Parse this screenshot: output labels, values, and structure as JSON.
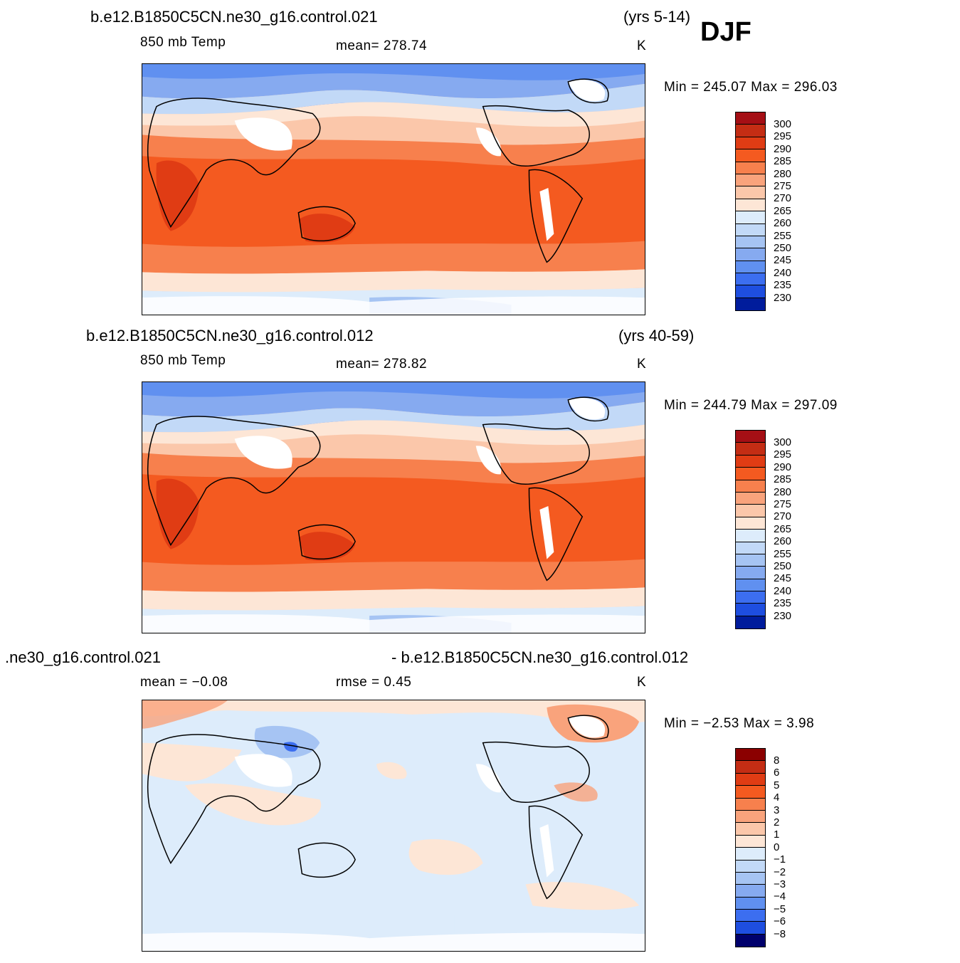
{
  "season": "DJF",
  "colors": {
    "abs_scale": [
      "#a50f15",
      "#c42d14",
      "#e03c14",
      "#f45a20",
      "#f7804d",
      "#f9a37c",
      "#fbc7aa",
      "#fde6d6",
      "#ddecfb",
      "#c2d9f7",
      "#a6c4f3",
      "#86aaf0",
      "#6090f0",
      "#3c6ef0",
      "#1e4ee0",
      "#0a2fc0",
      "#001c9c",
      "#00006c"
    ],
    "diff_scale": [
      "#8b0000",
      "#c42d14",
      "#e03c14",
      "#f45a20",
      "#f7804d",
      "#f9a37c",
      "#fbc7aa",
      "#fde6d6",
      "#ddecfb",
      "#c2d9f7",
      "#a6c4f3",
      "#86aaf0",
      "#6090f0",
      "#3c6ef0",
      "#1e4ee0",
      "#0a2fc0",
      "#00006c"
    ]
  },
  "panels": [
    {
      "case": "b.e12.B1850C5CN.ne30_g16.control.021",
      "years": "(yrs 5-14)",
      "variable": "850 mb Temp",
      "stat": "mean=  278.74",
      "units": "K",
      "minmax": "Min  =  245.07  Max  =  296.03",
      "colorbar_labels": [
        "300",
        "295",
        "290",
        "285",
        "280",
        "275",
        "270",
        "265",
        "260",
        "255",
        "250",
        "245",
        "240",
        "235",
        "230"
      ]
    },
    {
      "case": "b.e12.B1850C5CN.ne30_g16.control.012",
      "years": "(yrs 40-59)",
      "variable": "850 mb Temp",
      "stat": "mean=  278.82",
      "units": "K",
      "minmax": "Min  =  244.79  Max  =  297.09",
      "colorbar_labels": [
        "300",
        "295",
        "290",
        "285",
        "280",
        "275",
        "270",
        "265",
        "260",
        "255",
        "250",
        "245",
        "240",
        "235",
        "230"
      ]
    },
    {
      "case_left": ".ne30_g16.control.021",
      "case_right": "- b.e12.B1850C5CN.ne30_g16.control.012",
      "stat_left": "mean  =   −0.08",
      "stat_mid": "rmse  =     0.45",
      "units": "K",
      "minmax": "Min  =    −2.53  Max  =      3.98",
      "colorbar_labels": [
        "8",
        "6",
        "5",
        "4",
        "3",
        "2",
        "1",
        "0",
        "−1",
        "−2",
        "−3",
        "−4",
        "−5",
        "−6",
        "−8"
      ]
    }
  ]
}
